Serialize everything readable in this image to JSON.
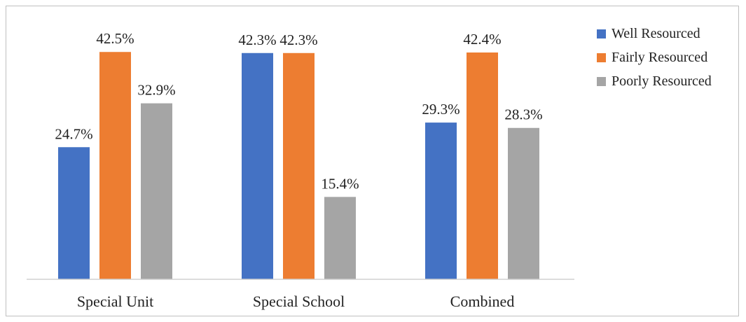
{
  "chart_data": {
    "type": "bar",
    "title": "",
    "xlabel": "",
    "ylabel": "",
    "ylim": [
      0,
      45
    ],
    "grid": false,
    "legend_position": "right",
    "categories": [
      "Special Unit",
      "Special School",
      "Combined"
    ],
    "series": [
      {
        "name": "Well Resourced",
        "color": "#4472C4",
        "values": [
          24.7,
          42.3,
          29.3
        ],
        "labels": [
          "24.7%",
          "42.3%",
          "29.3%"
        ]
      },
      {
        "name": "Fairly Resourced",
        "color": "#ED7D31",
        "values": [
          42.5,
          42.3,
          42.4
        ],
        "labels": [
          "42.5%",
          "42.3%",
          "42.4%"
        ]
      },
      {
        "name": "Poorly Resourced",
        "color": "#A5A5A5",
        "values": [
          32.9,
          15.4,
          28.3
        ],
        "labels": [
          "32.9%",
          "15.4%",
          "28.3%"
        ]
      }
    ]
  }
}
